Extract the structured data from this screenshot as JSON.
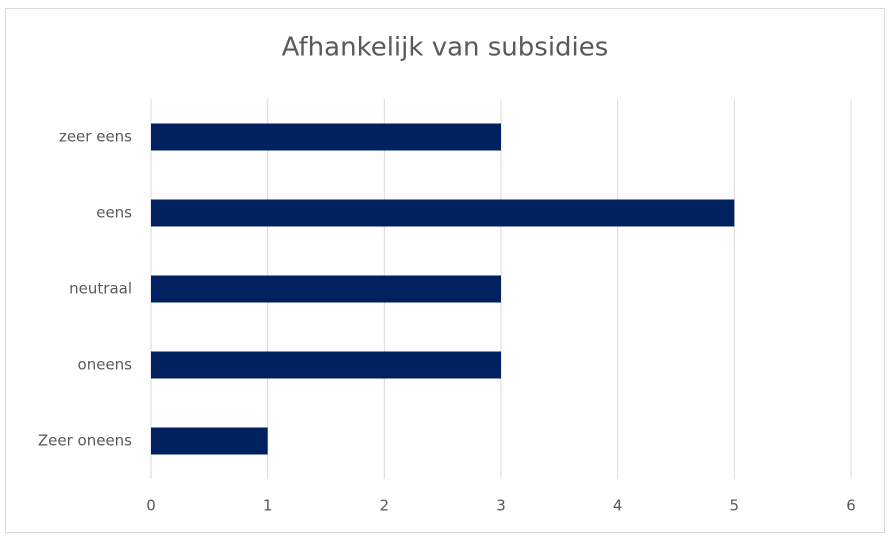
{
  "chart_data": {
    "type": "bar",
    "orientation": "horizontal",
    "title": "Afhankelijk van subsidies",
    "categories": [
      "zeer eens",
      "eens",
      "neutraal",
      "oneens",
      "Zeer oneens"
    ],
    "values": [
      3,
      5,
      3,
      3,
      1
    ],
    "color": "#002060",
    "xlim": [
      0,
      6
    ],
    "xticks": [
      0,
      1,
      2,
      3,
      4,
      5,
      6
    ],
    "grid": true
  }
}
